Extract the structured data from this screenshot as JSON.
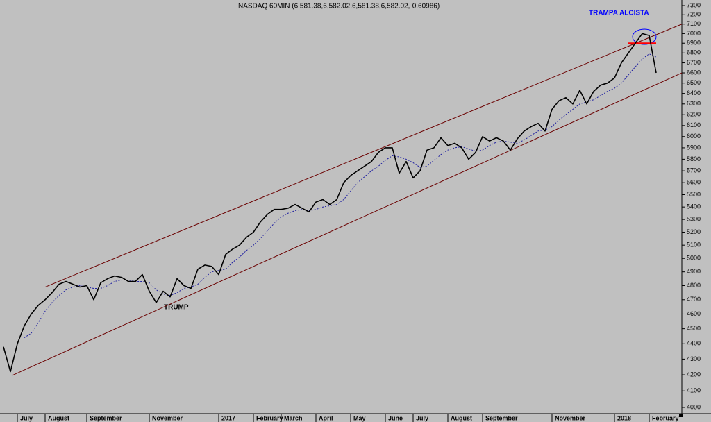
{
  "chart_data": {
    "type": "line",
    "title": "NASDAQ 60MIN (6,581.38,6,582.02,6,581.38,6,582.02,-0.60986)",
    "annotations": [
      "TRUMP",
      "TRAMPA ALCISTA"
    ],
    "yscale": "log",
    "ylim": [
      4000,
      7300
    ],
    "yticks": [
      4000,
      4100,
      4200,
      4300,
      4400,
      4500,
      4600,
      4700,
      4800,
      4900,
      5000,
      5100,
      5200,
      5300,
      5400,
      5500,
      5600,
      5700,
      5800,
      5900,
      6000,
      6100,
      6200,
      6300,
      6400,
      6500,
      6600,
      6700,
      6800,
      6900,
      7000,
      7100,
      7200,
      7300
    ],
    "categories": [
      null,
      null,
      "July",
      null,
      null,
      null,
      "August",
      null,
      null,
      null,
      null,
      null,
      "September",
      null,
      null,
      null,
      null,
      null,
      null,
      null,
      null,
      "November",
      null,
      null,
      null,
      null,
      null,
      null,
      null,
      null,
      null,
      "2017",
      null,
      null,
      null,
      null,
      "February",
      null,
      null,
      null,
      "March",
      null,
      null,
      null,
      null,
      "April",
      null,
      null,
      null,
      null,
      "May",
      null,
      null,
      null,
      null,
      "June",
      null,
      null,
      null,
      "July",
      null,
      null,
      null,
      null,
      "August",
      null,
      null,
      null,
      null,
      "September",
      null,
      null,
      null,
      null,
      null,
      null,
      null,
      null,
      null,
      "November",
      null,
      null,
      null,
      null,
      null,
      null,
      null,
      null,
      "2018",
      null,
      null,
      null,
      null,
      "February",
      null
    ],
    "series": [
      {
        "color": "#000000",
        "values": [
          4380,
          4220,
          4400,
          4520,
          4600,
          4660,
          4700,
          4750,
          4810,
          4830,
          4810,
          4790,
          4800,
          4700,
          4820,
          4850,
          4870,
          4860,
          4830,
          4830,
          4880,
          4760,
          4680,
          4760,
          4720,
          4850,
          4800,
          4780,
          4920,
          4950,
          4940,
          4880,
          5030,
          5070,
          5100,
          5160,
          5200,
          5280,
          5340,
          5380,
          5380,
          5390,
          5420,
          5390,
          5360,
          5440,
          5460,
          5420,
          5460,
          5600,
          5660,
          5700,
          5740,
          5780,
          5860,
          5900,
          5900,
          5680,
          5780,
          5640,
          5700,
          5880,
          5900,
          5990,
          5920,
          5940,
          5900,
          5800,
          5860,
          6000,
          5960,
          5990,
          5960,
          5880,
          5980,
          6050,
          6090,
          6120,
          6050,
          6250,
          6330,
          6360,
          6300,
          6430,
          6300,
          6420,
          6480,
          6500,
          6550,
          6700,
          6800,
          6900,
          7000,
          6980,
          6600
        ]
      },
      {
        "color": "#2020a0",
        "dashed": true,
        "values": [
          null,
          null,
          null,
          4440,
          4470,
          4540,
          4620,
          4680,
          4730,
          4770,
          4790,
          4800,
          4790,
          4780,
          4780,
          4800,
          4830,
          4840,
          4840,
          4830,
          4830,
          4820,
          4770,
          4740,
          4730,
          4750,
          4780,
          4790,
          4810,
          4860,
          4900,
          4910,
          4920,
          4970,
          5010,
          5060,
          5100,
          5150,
          5210,
          5270,
          5320,
          5350,
          5370,
          5380,
          5370,
          5380,
          5400,
          5410,
          5420,
          5460,
          5530,
          5600,
          5650,
          5700,
          5740,
          5790,
          5830,
          5820,
          5800,
          5770,
          5730,
          5740,
          5790,
          5840,
          5880,
          5900,
          5910,
          5890,
          5870,
          5880,
          5920,
          5950,
          5960,
          5950,
          5940,
          5970,
          6010,
          6050,
          6060,
          6090,
          6150,
          6200,
          6250,
          6300,
          6320,
          6340,
          6380,
          6420,
          6450,
          6500,
          6580,
          6660,
          6740,
          6790,
          6760
        ]
      }
    ],
    "trendlines": [
      {
        "color": "#6b0000",
        "x": [
          6,
          97.7
        ],
        "values": [
          4790,
          7100
        ]
      },
      {
        "color": "#6b0000",
        "x": [
          1.2,
          97.7
        ],
        "values": [
          4195,
          6600
        ]
      },
      {
        "color": "#ff0000",
        "x": [
          90,
          94
        ],
        "values": [
          6900,
          6900
        ]
      }
    ]
  }
}
